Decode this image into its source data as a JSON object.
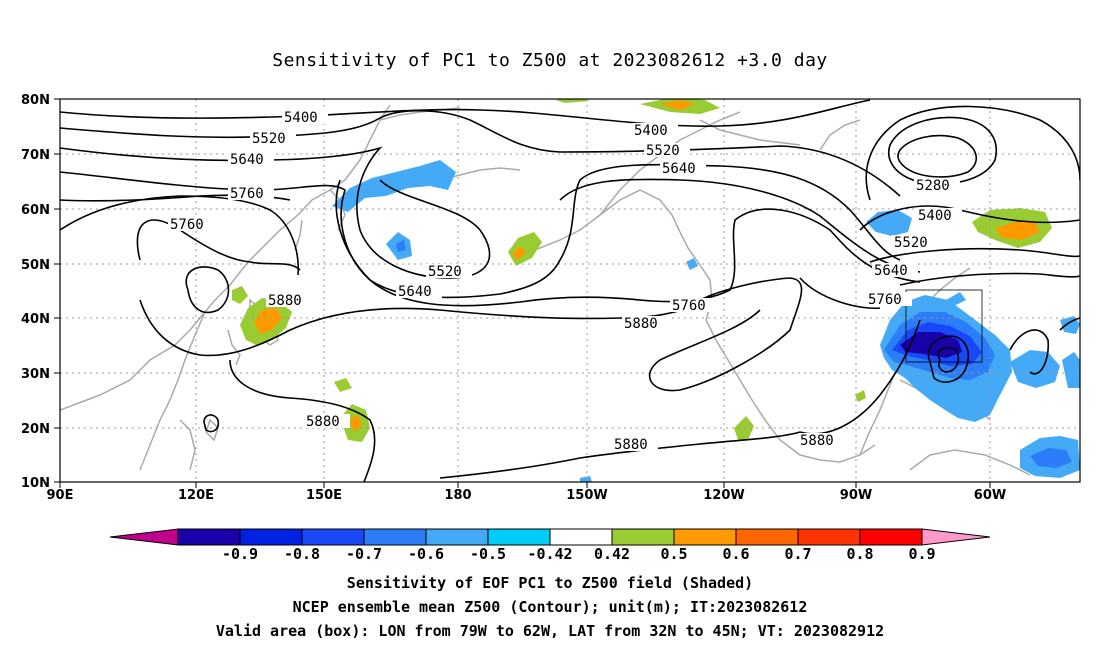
{
  "title": "Sensitivity of PC1 to Z500 at 2023082612 +3.0 day",
  "map": {
    "lon_labels": [
      "90E",
      "120E",
      "150E",
      "180",
      "150W",
      "120W",
      "90W",
      "60W"
    ],
    "lat_labels": [
      "80N",
      "70N",
      "60N",
      "50N",
      "40N",
      "30N",
      "20N",
      "10N"
    ],
    "contour_labels": [
      "5400",
      "5520",
      "5640",
      "5760",
      "5400",
      "5520",
      "5640",
      "5760",
      "5520",
      "5640",
      "5880",
      "5280",
      "5400",
      "5520",
      "5640",
      "5760",
      "5880",
      "5880",
      "5880",
      "5880"
    ],
    "box": "LON 79W-62W, LAT 32N-45N"
  },
  "colorbar": {
    "labels": [
      "-0.9",
      "-0.8",
      "-0.7",
      "-0.6",
      "-0.5",
      "-0.42",
      "0.42",
      "0.5",
      "0.6",
      "0.7",
      "0.8",
      "0.9"
    ],
    "colors": [
      "#c0008a",
      "#1a00a8",
      "#0022e0",
      "#1848f8",
      "#2c7ef8",
      "#44aaf8",
      "#00ccf8",
      "#ffffff",
      "#99cc33",
      "#ff9900",
      "#ff6600",
      "#ff3300",
      "#ff0000",
      "#ff99cc"
    ]
  },
  "captions": {
    "line1": "Sensitivity of EOF PC1 to Z500 field (Shaded)",
    "line2": "NCEP ensemble mean Z500 (Contour); unit(m); IT:2023082612",
    "line3": "Valid area (box): LON from 79W to 62W, LAT from 32N to 45N; VT: 2023082912"
  }
}
